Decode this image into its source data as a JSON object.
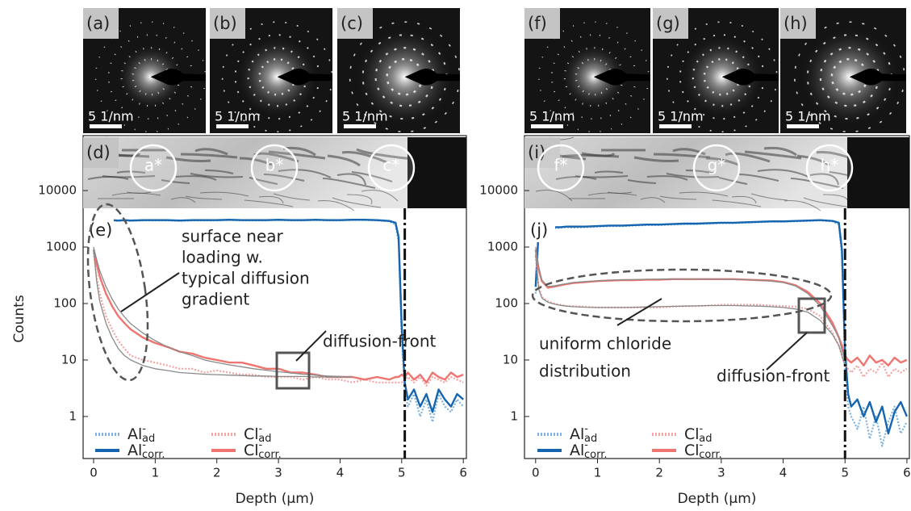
{
  "chart_data": [
    {
      "type": "line",
      "ylabel": "Counts",
      "xlabel": "Depth (µm)",
      "log_y": true,
      "legend": "lower left",
      "xlim": [
        -0.17,
        6.05
      ],
      "ylim": [
        0.18,
        94000
      ],
      "xticks": [
        0,
        1,
        2,
        3,
        4,
        5,
        6
      ],
      "yticks": [
        1,
        10,
        100,
        1000,
        10000
      ],
      "vline": 5.05,
      "diffraction_panels": [
        {
          "label": "(a)",
          "scale": "5 1/nm"
        },
        {
          "label": "(b)",
          "scale": "5 1/nm"
        },
        {
          "label": "(c)",
          "scale": "5 1/nm"
        }
      ],
      "image": {
        "label": "(d)",
        "markers": [
          "a*",
          "b*",
          "c*"
        ]
      },
      "panel_label": "(e)",
      "annotations": [
        {
          "lines": [
            "surface near",
            "loading w.",
            "typical diffusion",
            "gradient"
          ]
        },
        {
          "lines": [
            "diffusion-front"
          ]
        }
      ],
      "x": [
        0,
        0.05,
        0.1,
        0.2,
        0.3,
        0.4,
        0.5,
        0.6,
        0.8,
        1.0,
        1.2,
        1.4,
        1.6,
        1.8,
        2.0,
        2.2,
        2.4,
        2.6,
        2.8,
        3.0,
        3.2,
        3.4,
        3.6,
        3.8,
        4.0,
        4.2,
        4.4,
        4.6,
        4.8,
        4.9,
        4.95,
        5.0,
        5.05,
        5.1,
        5.2,
        5.3,
        5.4,
        5.5,
        5.6,
        5.7,
        5.8,
        5.9,
        6.0
      ],
      "series": [
        {
          "name": "Al",
          "superscript": "-",
          "subscript": "ad",
          "color": "#7fb2de",
          "style": "dotted",
          "values": [
            2700,
            2800,
            2850,
            2850,
            2900,
            2900,
            2950,
            2900,
            2950,
            2950,
            2950,
            2900,
            2950,
            2950,
            2950,
            3000,
            2950,
            2950,
            2950,
            3000,
            2950,
            2950,
            3000,
            2950,
            2950,
            3000,
            3000,
            2950,
            2850,
            2500,
            1200,
            25,
            3,
            1.5,
            2.5,
            1,
            2,
            0.8,
            2.5,
            1.5,
            1.2,
            2,
            1.5
          ]
        },
        {
          "name": "Al",
          "superscript": "-",
          "subscript": "corr.",
          "color": "#1565b0",
          "style": "solid",
          "values": [
            2900,
            2950,
            2950,
            2950,
            3000,
            2950,
            3000,
            2950,
            3000,
            3000,
            3000,
            2950,
            3000,
            3000,
            3000,
            3050,
            3000,
            3000,
            3000,
            3050,
            3000,
            3000,
            3050,
            3000,
            3000,
            3050,
            3050,
            3000,
            2900,
            2700,
            1500,
            40,
            4,
            2,
            3,
            1.5,
            2.5,
            1.2,
            3,
            2,
            1.5,
            2.5,
            2
          ]
        },
        {
          "name": "Cl",
          "superscript": "-",
          "subscript": "ad",
          "color": "#f5a3a3",
          "style": "dotted",
          "values": [
            800,
            300,
            150,
            60,
            35,
            22,
            16,
            12,
            10,
            9,
            8,
            7,
            7,
            6,
            6.5,
            6,
            5.5,
            5.5,
            5,
            5,
            5,
            4.5,
            5,
            4.5,
            4.5,
            4,
            4.5,
            4,
            4,
            4,
            4,
            4,
            4.5,
            5,
            4,
            5,
            3.5,
            5,
            4.5,
            4,
            5,
            4.5,
            4
          ]
        },
        {
          "name": "Cl",
          "superscript": "-",
          "subscript": "corr.",
          "color": "#f07470",
          "style": "solid",
          "values": [
            900,
            500,
            300,
            150,
            90,
            60,
            45,
            35,
            25,
            20,
            17,
            14,
            13,
            11,
            10,
            9,
            9,
            8,
            7,
            7,
            6,
            6,
            5.5,
            5,
            5,
            5,
            4.5,
            5,
            4.5,
            5,
            5,
            5.5,
            5,
            6,
            4.5,
            5.5,
            4,
            6,
            5,
            4.5,
            6,
            5,
            5.5
          ]
        },
        {
          "color": "#8a8a8a",
          "style": "thin",
          "values": [
            1000,
            600,
            380,
            200,
            120,
            80,
            58,
            44,
            30,
            22,
            17,
            14,
            12,
            10,
            9,
            8.2,
            7.6,
            7,
            6.6,
            6.2,
            5.9,
            5.6,
            5.4,
            5.2,
            5.1,
            5,
            null,
            null,
            null,
            null,
            null,
            null,
            null,
            null,
            null,
            null,
            null,
            null,
            null,
            null,
            null,
            null,
            null
          ]
        },
        {
          "color": "#8a8a8a",
          "style": "thin",
          "values": [
            900,
            250,
            110,
            45,
            25,
            16,
            12,
            10,
            8,
            7,
            6.5,
            6,
            5.8,
            5.6,
            5.5,
            5.4,
            5.3,
            5.2,
            5.2,
            5.1,
            5.1,
            5.1,
            5,
            5,
            5,
            5,
            null,
            null,
            null,
            null,
            null,
            null,
            null,
            null,
            null,
            null,
            null,
            null,
            null,
            null,
            null,
            null,
            null
          ]
        }
      ]
    },
    {
      "type": "line",
      "xlabel": "Depth (µm)",
      "log_y": true,
      "legend": "lower left",
      "xlim": [
        -0.18,
        6.04
      ],
      "ylim": [
        0.18,
        94000
      ],
      "xticks": [
        0,
        1,
        2,
        3,
        4,
        5,
        6
      ],
      "yticks": [
        1,
        10,
        100,
        1000,
        10000
      ],
      "vline": 5.0,
      "diffraction_panels": [
        {
          "label": "(f)",
          "scale": "5 1/nm"
        },
        {
          "label": "(g)",
          "scale": "5 1/nm"
        },
        {
          "label": "(h)",
          "scale": "5 1/nm"
        }
      ],
      "image": {
        "label": "(i)",
        "markers": [
          "f*",
          "g*",
          "h*"
        ]
      },
      "panel_label": "(j)",
      "annotations": [
        {
          "lines": [
            "uniform chloride",
            "distribution"
          ]
        },
        {
          "lines": [
            "diffusion-front"
          ]
        }
      ],
      "x": [
        0,
        0.05,
        0.1,
        0.2,
        0.3,
        0.4,
        0.5,
        0.6,
        0.8,
        1.0,
        1.2,
        1.4,
        1.6,
        1.8,
        2.0,
        2.2,
        2.4,
        2.6,
        2.8,
        3.0,
        3.2,
        3.4,
        3.6,
        3.8,
        4.0,
        4.2,
        4.4,
        4.6,
        4.8,
        4.9,
        4.95,
        5.0,
        5.05,
        5.1,
        5.2,
        5.3,
        5.4,
        5.5,
        5.6,
        5.7,
        5.8,
        5.9,
        6.0
      ],
      "series": [
        {
          "name": "Al",
          "superscript": "-",
          "subscript": "ad",
          "color": "#7fb2de",
          "style": "dotted",
          "values": [
            150,
            1800,
            1900,
            2100,
            2150,
            2200,
            2250,
            2200,
            2250,
            2300,
            2350,
            2350,
            2400,
            2450,
            2450,
            2500,
            2550,
            2550,
            2600,
            2650,
            2650,
            2700,
            2750,
            2800,
            2800,
            2850,
            2900,
            2950,
            2850,
            2500,
            700,
            8,
            1.5,
            1,
            0.6,
            1.5,
            0.4,
            1,
            0.3,
            0.8,
            1.5,
            0.5,
            0.8
          ]
        },
        {
          "name": "Al",
          "superscript": "-",
          "subscript": "corr.",
          "color": "#1565b0",
          "style": "solid",
          "values": [
            200,
            2000,
            2100,
            2200,
            2250,
            2250,
            2300,
            2300,
            2300,
            2350,
            2400,
            2400,
            2450,
            2500,
            2500,
            2550,
            2600,
            2600,
            2650,
            2700,
            2700,
            2750,
            2800,
            2850,
            2850,
            2900,
            2950,
            3000,
            2900,
            2700,
            900,
            15,
            2.5,
            1.5,
            2,
            1,
            1.8,
            0.8,
            1.5,
            0.5,
            1.2,
            1.8,
            1
          ]
        },
        {
          "name": "Cl",
          "superscript": "-",
          "subscript": "ad",
          "color": "#f5a3a3",
          "style": "dotted",
          "values": [
            700,
            200,
            130,
            110,
            100,
            95,
            90,
            90,
            88,
            85,
            85,
            85,
            85,
            85,
            85,
            88,
            90,
            90,
            92,
            95,
            95,
            95,
            95,
            92,
            90,
            88,
            80,
            60,
            30,
            18,
            12,
            8,
            7,
            6,
            8,
            5,
            7,
            6,
            9,
            5,
            7,
            6,
            7
          ]
        },
        {
          "name": "Cl",
          "superscript": "-",
          "subscript": "corr.",
          "color": "#f07470",
          "style": "solid",
          "values": [
            900,
            400,
            250,
            190,
            200,
            210,
            220,
            230,
            240,
            250,
            255,
            260,
            260,
            265,
            265,
            270,
            270,
            270,
            270,
            270,
            270,
            265,
            260,
            255,
            240,
            210,
            160,
            100,
            45,
            25,
            18,
            12,
            10,
            9,
            11,
            8,
            12,
            9,
            10,
            8,
            11,
            9,
            10
          ]
        },
        {
          "color": "#8a8a8a",
          "style": "thin",
          "values": [
            1000,
            450,
            260,
            200,
            205,
            215,
            225,
            235,
            245,
            252,
            258,
            262,
            266,
            268,
            270,
            271,
            272,
            272,
            271,
            270,
            268,
            264,
            258,
            250,
            235,
            205,
            150,
            90,
            40,
            25,
            15,
            10,
            null,
            null,
            null,
            null,
            null,
            null,
            null,
            null,
            null,
            null,
            null
          ]
        },
        {
          "color": "#8a8a8a",
          "style": "thin",
          "values": [
            750,
            180,
            125,
            105,
            98,
            93,
            90,
            88,
            86,
            85,
            85,
            85,
            86,
            87,
            88,
            89,
            90,
            91,
            92,
            92,
            92,
            91,
            90,
            88,
            85,
            80,
            70,
            50,
            28,
            18,
            12,
            8,
            null,
            null,
            null,
            null,
            null,
            null,
            null,
            null,
            null,
            null,
            null
          ]
        }
      ]
    }
  ]
}
